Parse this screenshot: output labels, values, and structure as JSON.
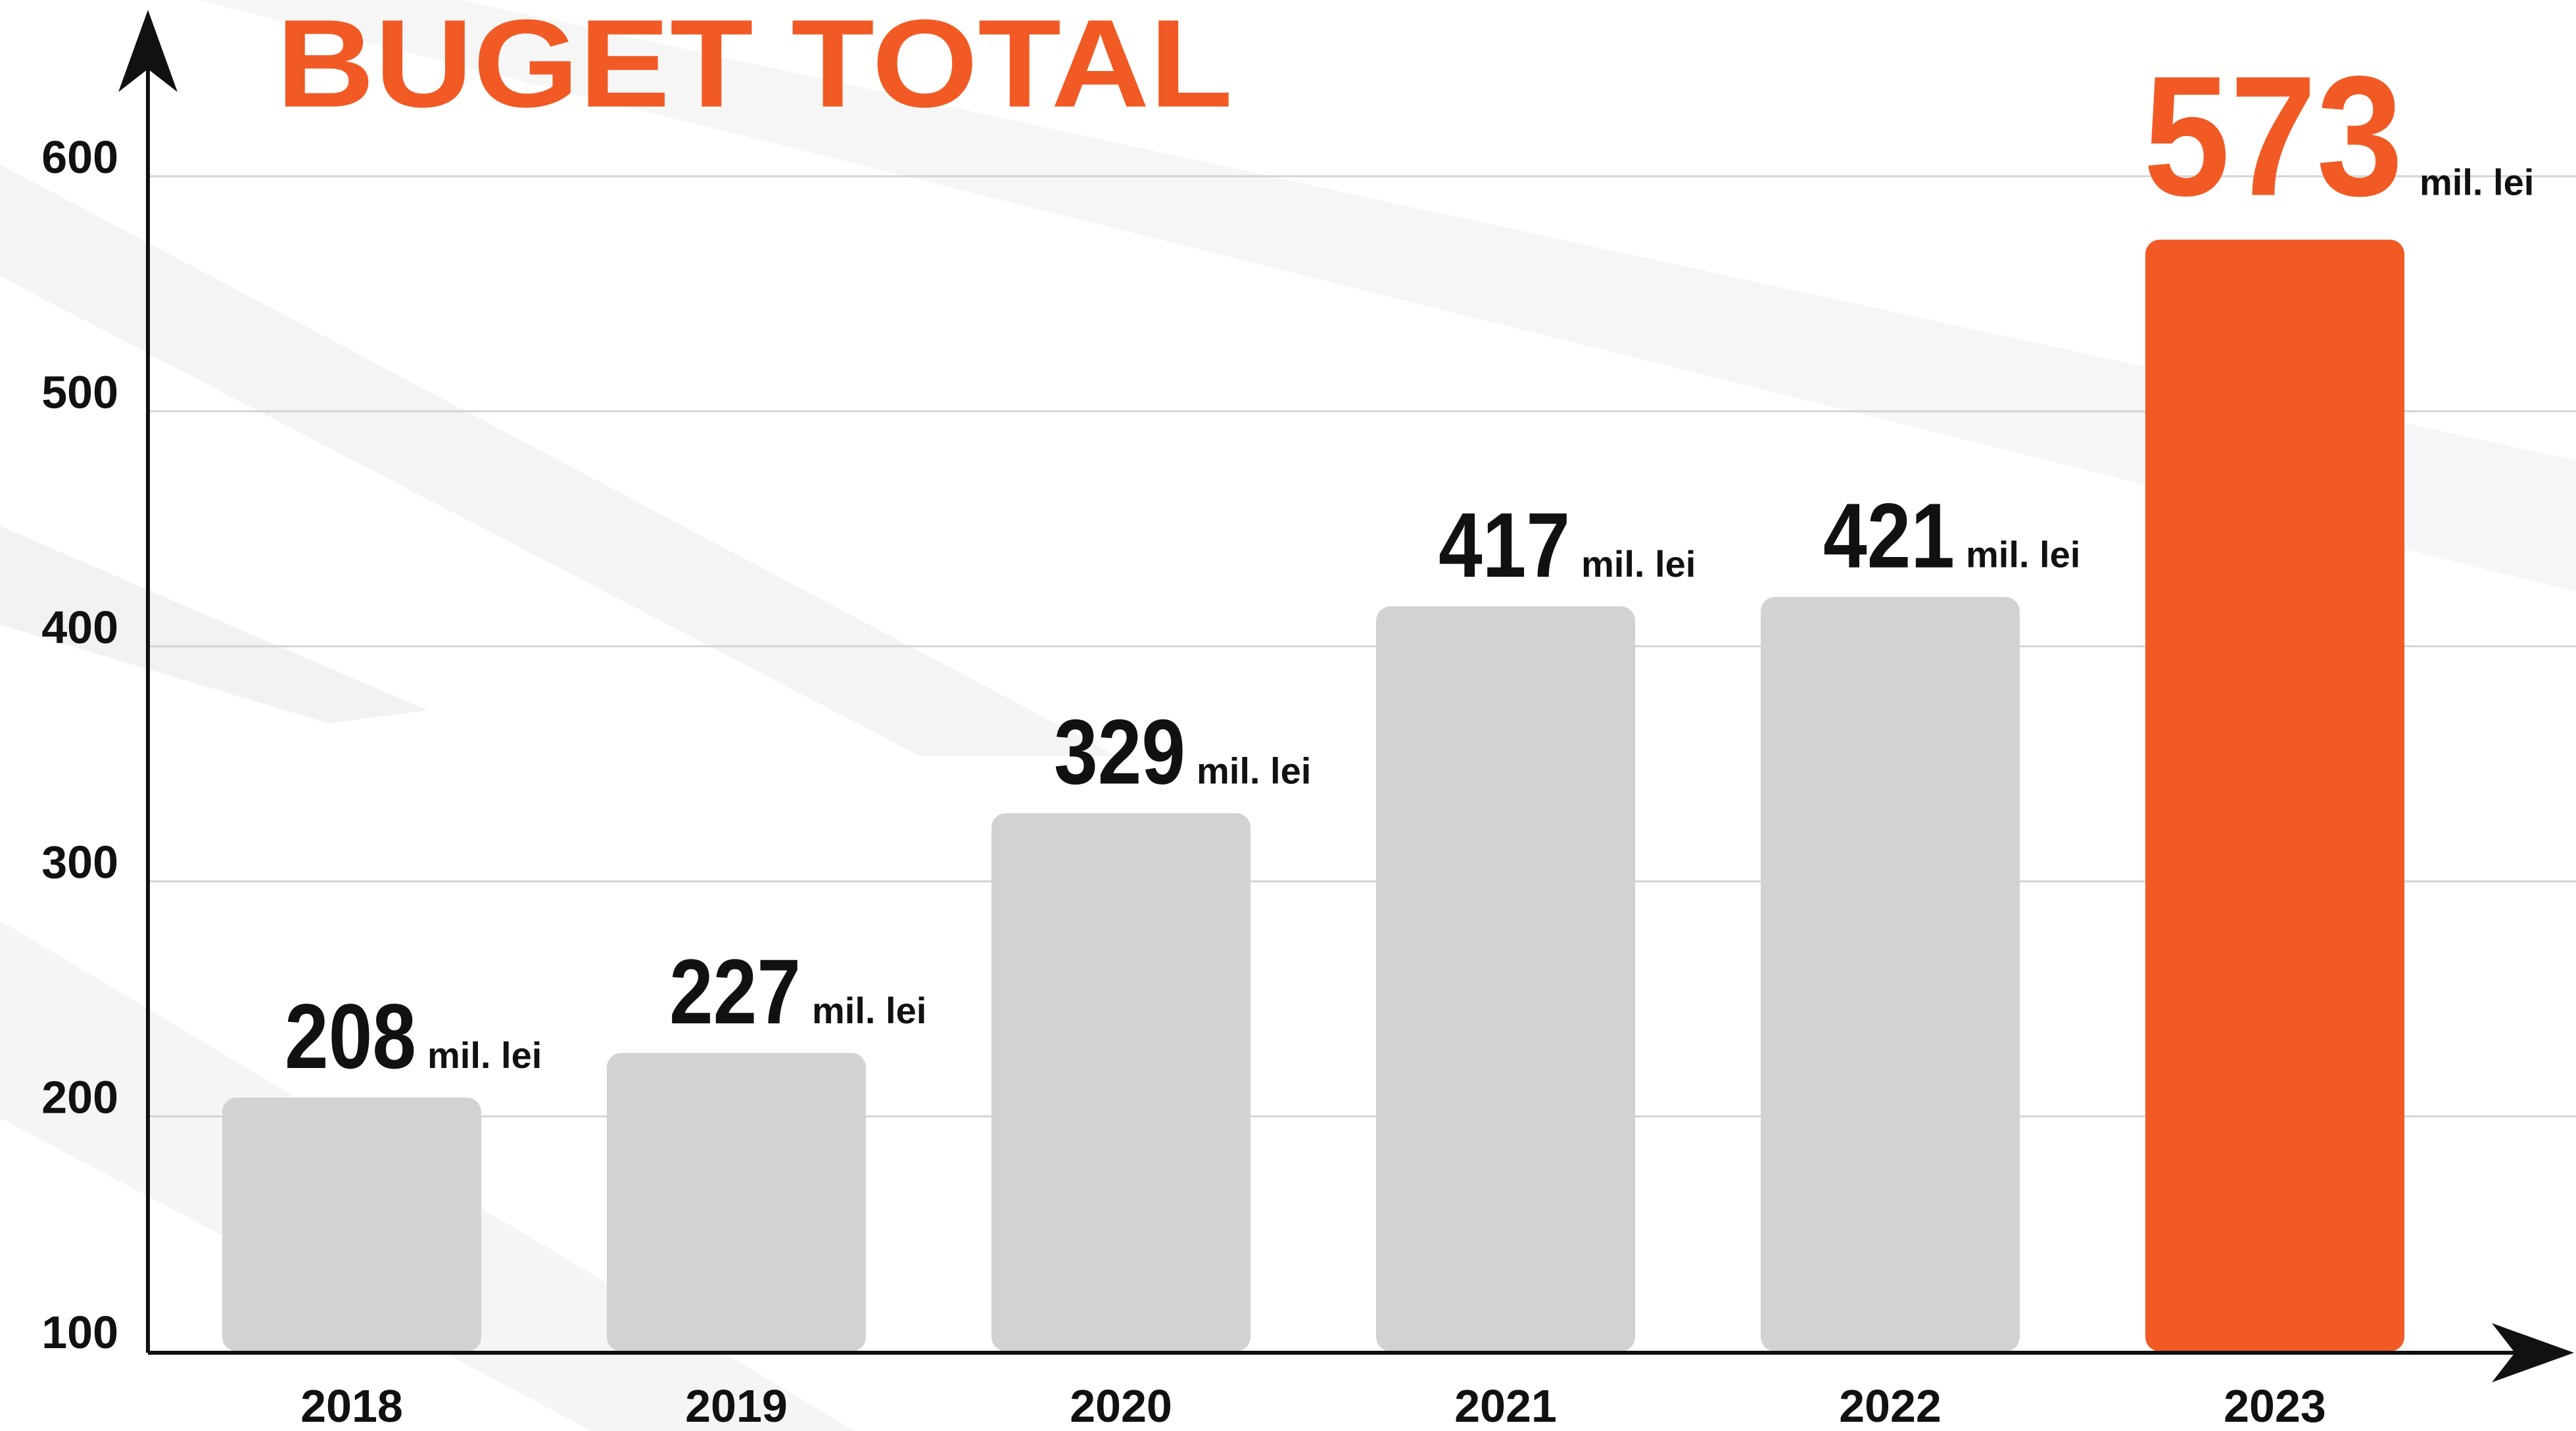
{
  "chart_data": {
    "type": "bar",
    "title": "BUGET TOTAL",
    "categories": [
      "2018",
      "2019",
      "2020",
      "2021",
      "2022",
      "2023"
    ],
    "values": [
      208,
      227,
      329,
      417,
      421,
      573
    ],
    "unit": "mil. lei",
    "colors": [
      "#d1d2d4",
      "#d1d2d4",
      "#d1d2d4",
      "#d1d2d4",
      "#d1d2d4",
      "#f15a24"
    ],
    "ylim": [
      100,
      600
    ],
    "yticks": [
      100,
      200,
      300,
      400,
      500,
      600
    ],
    "grid": true
  }
}
